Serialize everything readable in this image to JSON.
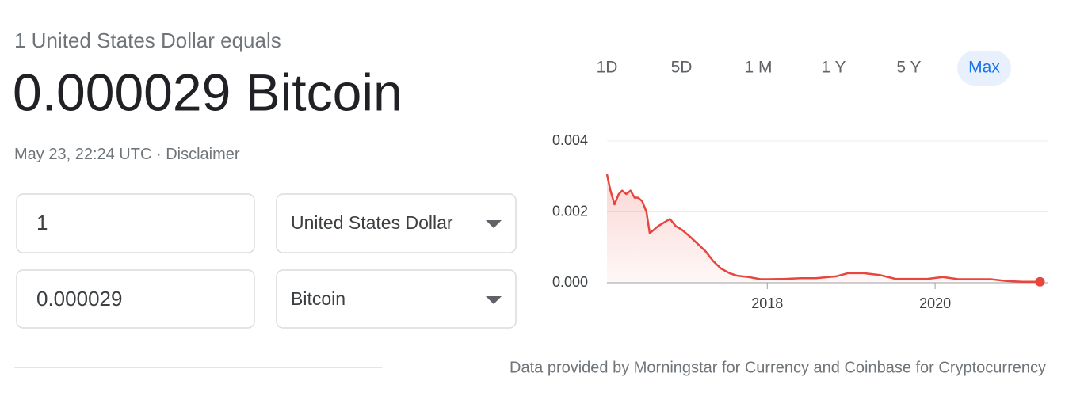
{
  "header": {
    "subtitle": "1 United States Dollar equals",
    "result": "0.000029 Bitcoin",
    "timestamp": "May 23, 22:24 UTC",
    "separator": "·",
    "disclaimer": "Disclaimer"
  },
  "converter": {
    "amount_from": "1",
    "currency_from": "United States Dollar",
    "amount_to": "0.000029",
    "currency_to": "Bitcoin"
  },
  "ranges": [
    "1D",
    "5D",
    "1 M",
    "1 Y",
    "5 Y",
    "Max"
  ],
  "selected_range": "Max",
  "chart_data": {
    "type": "area",
    "x": [
      2016.09,
      2016.13,
      2016.18,
      2016.23,
      2016.27,
      2016.32,
      2016.37,
      2016.42,
      2016.46,
      2016.51,
      2016.56,
      2016.6,
      2016.65,
      2016.7,
      2016.77,
      2016.84,
      2016.91,
      2016.98,
      2017.08,
      2017.17,
      2017.26,
      2017.36,
      2017.45,
      2017.55,
      2017.64,
      2017.78,
      2017.92,
      2018.02,
      2018.21,
      2018.4,
      2018.58,
      2018.82,
      2018.96,
      2019.15,
      2019.34,
      2019.53,
      2019.72,
      2019.91,
      2020.09,
      2020.28,
      2020.47,
      2020.66,
      2020.85,
      2021.04,
      2021.25
    ],
    "values": [
      0.00306,
      0.00262,
      0.00221,
      0.0025,
      0.0026,
      0.0025,
      0.0026,
      0.0024,
      0.0024,
      0.0023,
      0.002,
      0.0014,
      0.0015,
      0.0016,
      0.0017,
      0.0018,
      0.0016,
      0.0015,
      0.0013,
      0.0011,
      0.0009,
      0.0006,
      0.0004,
      0.00027,
      0.0002,
      0.00016,
      0.0001,
      0.0001,
      0.00011,
      0.00013,
      0.00013,
      0.00018,
      0.00027,
      0.00027,
      0.00022,
      0.00011,
      0.00011,
      0.00011,
      0.00016,
      0.0001,
      0.0001,
      0.0001,
      5e-05,
      3e-05,
      2.9e-05
    ],
    "xlim": [
      2016.09,
      2021.34
    ],
    "ylim": [
      0,
      0.004
    ],
    "yticks": [
      {
        "value": 0,
        "label": "0.000"
      },
      0.002,
      0.004
    ],
    "xticks": [
      2018,
      2020
    ],
    "color": "#e8453c",
    "grid": true
  },
  "footer": "Data provided by Morningstar for Currency and Coinbase for Cryptocurrency"
}
